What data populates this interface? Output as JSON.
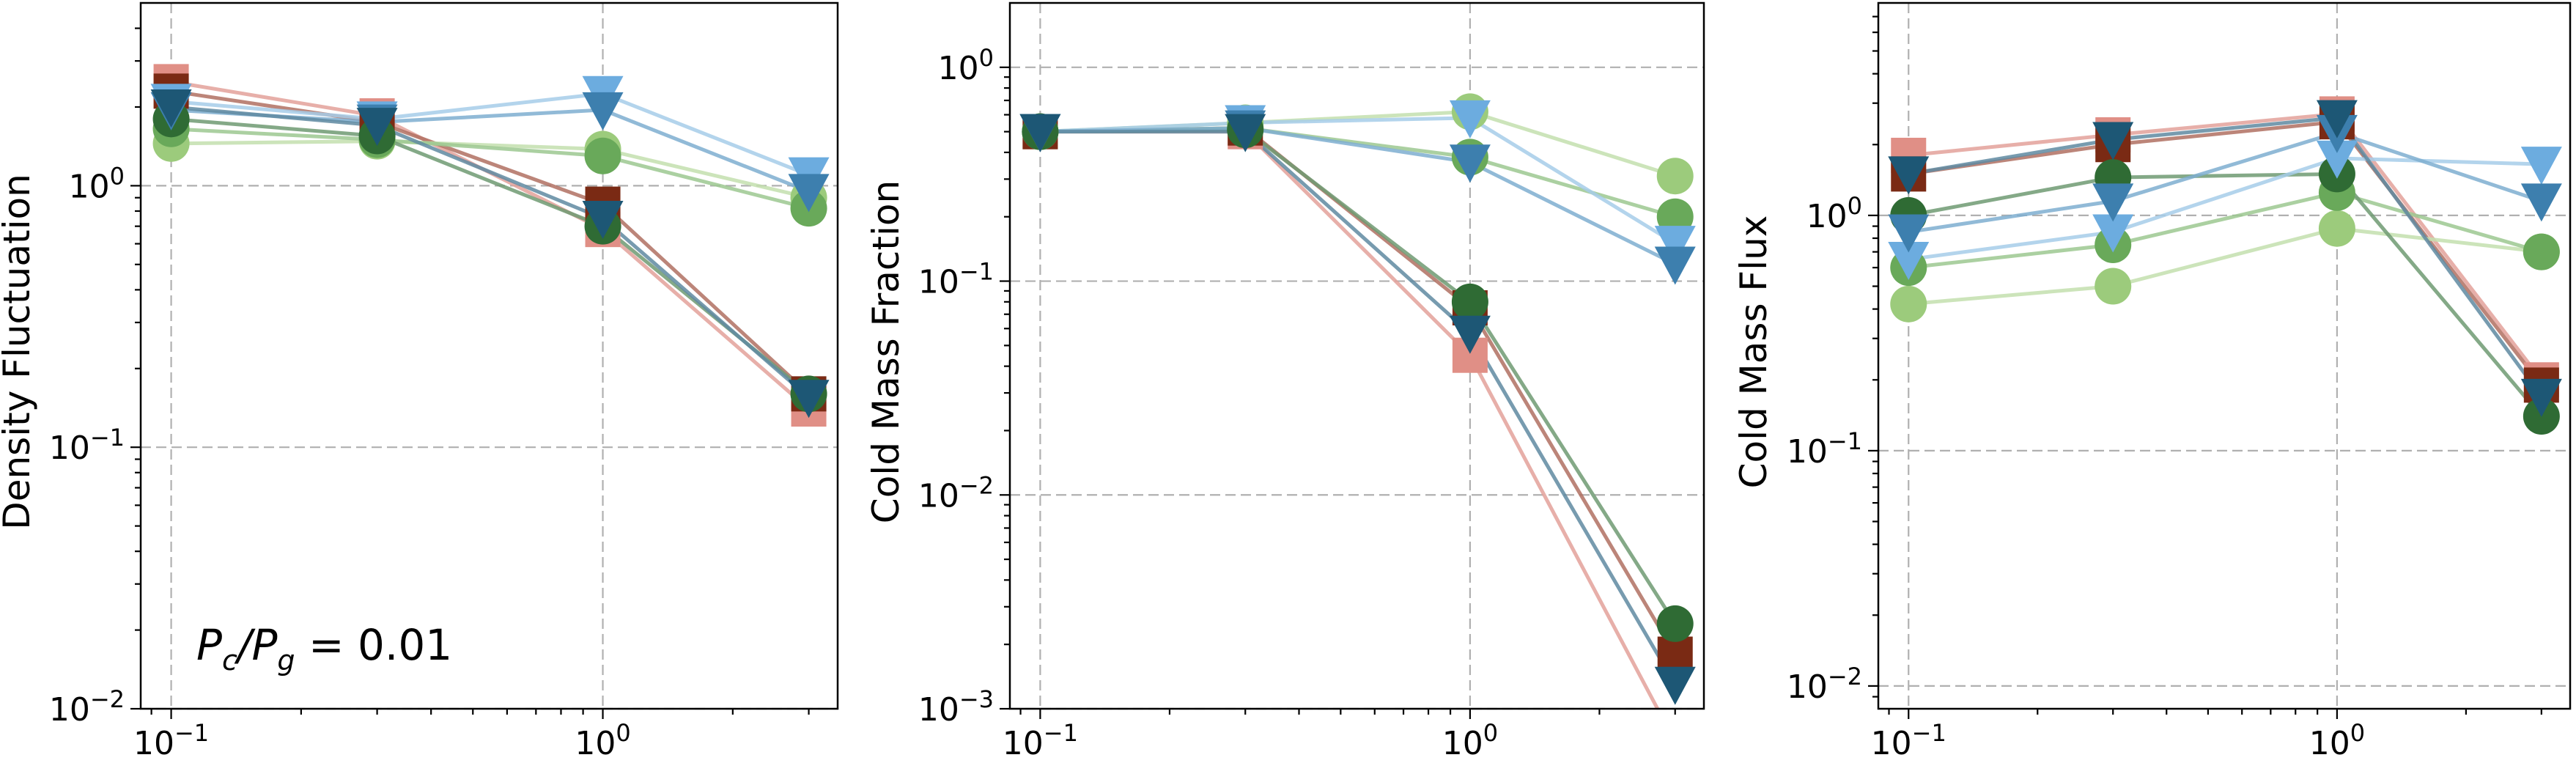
{
  "chart_data": [
    {
      "type": "line",
      "xscale": "log",
      "yscale": "log",
      "xlim": [
        0.085,
        3.5
      ],
      "ylim": [
        0.01,
        5.0
      ],
      "xticks": [
        {
          "value": 0.1,
          "base": "10",
          "exp": "−1"
        },
        {
          "value": 1,
          "base": "10",
          "exp": "0"
        }
      ],
      "yticks": [
        {
          "value": 0.01,
          "base": "10",
          "exp": "−2"
        },
        {
          "value": 0.1,
          "base": "10",
          "exp": "−1"
        },
        {
          "value": 1,
          "base": "10",
          "exp": "0"
        }
      ],
      "ylabel": "Density Fluctuation",
      "xlabel": "",
      "grid": true,
      "annotation": {
        "math_base": "P",
        "sub_c": "c",
        "slash": "/",
        "sub_g": "g",
        "equals_value": " = 0.01"
      },
      "x": [
        0.1,
        0.3,
        1.0,
        3.0
      ],
      "series": [
        {
          "marker": "square",
          "color": "#e08f86",
          "line_color": "#e3a19a",
          "values": [
            2.5,
            1.85,
            0.68,
            0.14
          ]
        },
        {
          "marker": "square",
          "color": "#7a2a14",
          "line_color": "#b07062",
          "values": [
            2.3,
            1.75,
            0.85,
            0.16
          ]
        },
        {
          "marker": "circle",
          "color": "#9ccb7c",
          "line_color": "#c3dfae",
          "values": [
            1.45,
            1.48,
            1.38,
            0.9
          ]
        },
        {
          "marker": "circle",
          "color": "#69a95a",
          "line_color": "#9cc891",
          "values": [
            1.65,
            1.5,
            1.3,
            0.82
          ]
        },
        {
          "marker": "circle",
          "color": "#2f6b34",
          "line_color": "#6f9a72",
          "values": [
            1.8,
            1.55,
            0.7,
            0.16
          ]
        },
        {
          "marker": "triangle",
          "color": "#6cacdf",
          "line_color": "#a6cde9",
          "values": [
            2.1,
            1.8,
            2.25,
            1.1
          ]
        },
        {
          "marker": "triangle",
          "color": "#3d7fae",
          "line_color": "#7eaed0",
          "values": [
            1.95,
            1.75,
            1.95,
            0.95
          ]
        },
        {
          "marker": "triangle",
          "color": "#1d5775",
          "line_color": "#5f8aa1",
          "values": [
            2.0,
            1.7,
            0.75,
            0.155
          ]
        }
      ]
    },
    {
      "type": "line",
      "xscale": "log",
      "yscale": "log",
      "xlim": [
        0.085,
        3.5
      ],
      "ylim": [
        0.001,
        2.0
      ],
      "xticks": [
        {
          "value": 0.1,
          "base": "10",
          "exp": "−1"
        },
        {
          "value": 1,
          "base": "10",
          "exp": "0"
        }
      ],
      "yticks": [
        {
          "value": 0.001,
          "base": "10",
          "exp": "−3"
        },
        {
          "value": 0.01,
          "base": "10",
          "exp": "−2"
        },
        {
          "value": 0.1,
          "base": "10",
          "exp": "−1"
        },
        {
          "value": 1,
          "base": "10",
          "exp": "0"
        }
      ],
      "ylabel": "Cold Mass Fraction",
      "xlabel": "",
      "grid": true,
      "x": [
        0.1,
        0.3,
        1.0,
        3.0
      ],
      "series": [
        {
          "marker": "square",
          "color": "#e08f86",
          "line_color": "#e3a19a",
          "values": [
            0.5,
            0.5,
            0.045,
            0.0007
          ]
        },
        {
          "marker": "square",
          "color": "#7a2a14",
          "line_color": "#b07062",
          "values": [
            0.5,
            0.52,
            0.075,
            0.0018
          ]
        },
        {
          "marker": "circle",
          "color": "#9ccb7c",
          "line_color": "#c3dfae",
          "values": [
            0.5,
            0.55,
            0.62,
            0.31
          ]
        },
        {
          "marker": "circle",
          "color": "#69a95a",
          "line_color": "#9cc891",
          "values": [
            0.5,
            0.52,
            0.38,
            0.2
          ]
        },
        {
          "marker": "circle",
          "color": "#2f6b34",
          "line_color": "#6f9a72",
          "values": [
            0.5,
            0.51,
            0.08,
            0.0025
          ]
        },
        {
          "marker": "triangle",
          "color": "#6cacdf",
          "line_color": "#a6cde9",
          "values": [
            0.5,
            0.55,
            0.58,
            0.15
          ]
        },
        {
          "marker": "triangle",
          "color": "#3d7fae",
          "line_color": "#7eaed0",
          "values": [
            0.5,
            0.52,
            0.36,
            0.12
          ]
        },
        {
          "marker": "triangle",
          "color": "#1d5775",
          "line_color": "#5f8aa1",
          "values": [
            0.5,
            0.5,
            0.057,
            0.0013
          ]
        }
      ]
    },
    {
      "type": "line",
      "xscale": "log",
      "yscale": "log",
      "xlim": [
        0.085,
        3.5
      ],
      "ylim": [
        0.008,
        8.0
      ],
      "xticks": [
        {
          "value": 0.1,
          "base": "10",
          "exp": "−1"
        },
        {
          "value": 1,
          "base": "10",
          "exp": "0"
        }
      ],
      "yticks": [
        {
          "value": 0.01,
          "base": "10",
          "exp": "−2"
        },
        {
          "value": 0.1,
          "base": "10",
          "exp": "−1"
        },
        {
          "value": 1,
          "base": "10",
          "exp": "0"
        }
      ],
      "ylabel": "Cold Mass Flux",
      "xlabel": "",
      "grid": true,
      "x": [
        0.1,
        0.3,
        1.0,
        3.0
      ],
      "series": [
        {
          "marker": "square",
          "color": "#e08f86",
          "line_color": "#e3a19a",
          "values": [
            1.8,
            2.2,
            2.7,
            0.2
          ]
        },
        {
          "marker": "square",
          "color": "#7a2a14",
          "line_color": "#b07062",
          "values": [
            1.5,
            2.0,
            2.5,
            0.19
          ]
        },
        {
          "marker": "circle",
          "color": "#9ccb7c",
          "line_color": "#c3dfae",
          "values": [
            0.42,
            0.5,
            0.88,
            0.7
          ]
        },
        {
          "marker": "circle",
          "color": "#69a95a",
          "line_color": "#9cc891",
          "values": [
            0.6,
            0.75,
            1.25,
            0.7
          ]
        },
        {
          "marker": "circle",
          "color": "#2f6b34",
          "line_color": "#6f9a72",
          "values": [
            1.0,
            1.45,
            1.5,
            0.14
          ]
        },
        {
          "marker": "triangle",
          "color": "#6cacdf",
          "line_color": "#a6cde9",
          "values": [
            0.65,
            0.85,
            1.75,
            1.65
          ]
        },
        {
          "marker": "triangle",
          "color": "#3d7fae",
          "line_color": "#7eaed0",
          "values": [
            0.85,
            1.15,
            2.25,
            1.15
          ]
        },
        {
          "marker": "triangle",
          "color": "#1d5775",
          "line_color": "#5f8aa1",
          "values": [
            1.5,
            2.1,
            2.6,
            0.17
          ]
        }
      ]
    }
  ]
}
